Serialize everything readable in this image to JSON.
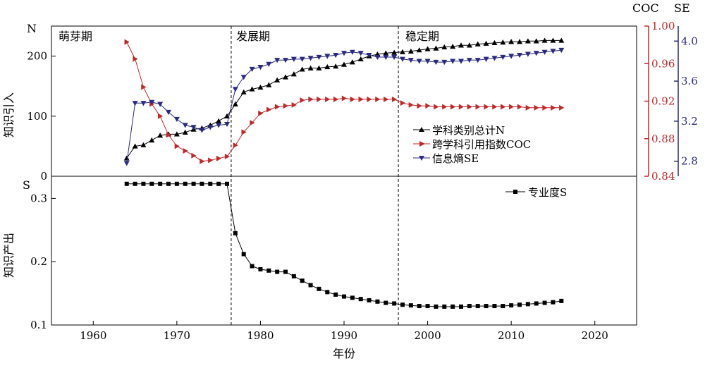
{
  "chart_data": [
    {
      "type": "line",
      "panel": "top",
      "ylabel": "知识引入",
      "y_axis_left": {
        "symbol": "N",
        "ylim": [
          0,
          250
        ],
        "ticks": [
          0,
          100,
          200
        ]
      },
      "y_axis_right_1": {
        "symbol": "COC",
        "ylim": [
          0.84,
          1.0
        ],
        "ticks": [
          0.84,
          0.88,
          0.92,
          0.96,
          1.0
        ],
        "tick_labels": [
          "0.84",
          "0.88",
          "0.92",
          "0.96",
          "1.00"
        ],
        "color": "#c0282a"
      },
      "y_axis_right_2": {
        "symbol": "SE",
        "ylim": [
          2.65,
          4.15
        ],
        "ticks": [
          2.8,
          3.2,
          3.6,
          4.0
        ],
        "tick_labels": [
          "2.8",
          "3.2",
          "3.6",
          "4.0"
        ],
        "color": "#2a2a80"
      },
      "phases": [
        {
          "label": "萌芽期"
        },
        {
          "label": "发展期"
        },
        {
          "label": "稳定期"
        }
      ],
      "phase_boundaries": [
        1976.5,
        1996.5
      ],
      "series": [
        {
          "name": "学科类别总计N",
          "axis": "left",
          "marker": "triangle-up",
          "color": "#000000",
          "x": [
            1964,
            1965,
            1966,
            1967,
            1968,
            1969,
            1970,
            1971,
            1972,
            1973,
            1974,
            1975,
            1976,
            1977,
            1978,
            1979,
            1980,
            1981,
            1982,
            1983,
            1984,
            1985,
            1986,
            1987,
            1988,
            1989,
            1990,
            1991,
            1992,
            1993,
            1994,
            1995,
            1996,
            1997,
            1998,
            1999,
            2000,
            2001,
            2002,
            2003,
            2004,
            2005,
            2006,
            2007,
            2008,
            2009,
            2010,
            2011,
            2012,
            2013,
            2014,
            2015,
            2016
          ],
          "values": [
            30,
            50,
            52,
            60,
            68,
            70,
            70,
            73,
            78,
            80,
            85,
            92,
            100,
            120,
            140,
            145,
            148,
            152,
            160,
            165,
            170,
            178,
            180,
            180,
            182,
            183,
            186,
            190,
            195,
            200,
            203,
            205,
            206,
            207,
            208,
            210,
            212,
            213,
            215,
            216,
            218,
            218,
            220,
            221,
            222,
            223,
            224,
            224,
            225,
            225,
            226,
            226,
            226
          ]
        },
        {
          "name": "跨学科引用指数COC",
          "axis": "right_1",
          "marker": "triangle-right",
          "color": "#c0282a",
          "x": [
            1964,
            1965,
            1966,
            1967,
            1968,
            1969,
            1970,
            1971,
            1972,
            1973,
            1974,
            1975,
            1976,
            1977,
            1978,
            1979,
            1980,
            1981,
            1982,
            1983,
            1984,
            1985,
            1986,
            1987,
            1988,
            1989,
            1990,
            1991,
            1992,
            1993,
            1994,
            1995,
            1996,
            1997,
            1998,
            1999,
            2000,
            2001,
            2002,
            2003,
            2004,
            2005,
            2006,
            2007,
            2008,
            2009,
            2010,
            2011,
            2012,
            2013,
            2014,
            2015,
            2016
          ],
          "values": [
            0.983,
            0.965,
            0.935,
            0.917,
            0.904,
            0.884,
            0.872,
            0.867,
            0.862,
            0.856,
            0.857,
            0.859,
            0.861,
            0.873,
            0.887,
            0.897,
            0.907,
            0.911,
            0.914,
            0.915,
            0.916,
            0.921,
            0.922,
            0.922,
            0.922,
            0.922,
            0.923,
            0.922,
            0.922,
            0.922,
            0.922,
            0.922,
            0.922,
            0.918,
            0.916,
            0.915,
            0.915,
            0.914,
            0.914,
            0.914,
            0.914,
            0.914,
            0.914,
            0.914,
            0.914,
            0.914,
            0.914,
            0.914,
            0.913,
            0.913,
            0.913,
            0.913,
            0.913
          ]
        },
        {
          "name": "信息熵SE",
          "axis": "right_2",
          "marker": "triangle-down",
          "color": "#2a2a80",
          "x": [
            1964,
            1965,
            1966,
            1967,
            1968,
            1969,
            1970,
            1971,
            1972,
            1973,
            1974,
            1975,
            1976,
            1977,
            1978,
            1979,
            1980,
            1981,
            1982,
            1983,
            1984,
            1985,
            1986,
            1987,
            1988,
            1989,
            1990,
            1991,
            1992,
            1993,
            1994,
            1995,
            1996,
            1997,
            1998,
            1999,
            2000,
            2001,
            2002,
            2003,
            2004,
            2005,
            2006,
            2007,
            2008,
            2009,
            2010,
            2011,
            2012,
            2013,
            2014,
            2015,
            2016
          ],
          "values": [
            2.78,
            3.38,
            3.38,
            3.39,
            3.37,
            3.29,
            3.22,
            3.16,
            3.14,
            3.11,
            3.14,
            3.16,
            3.17,
            3.52,
            3.64,
            3.72,
            3.74,
            3.77,
            3.81,
            3.81,
            3.82,
            3.82,
            3.83,
            3.84,
            3.85,
            3.86,
            3.88,
            3.89,
            3.88,
            3.86,
            3.84,
            3.84,
            3.84,
            3.82,
            3.81,
            3.8,
            3.8,
            3.79,
            3.79,
            3.8,
            3.8,
            3.81,
            3.81,
            3.82,
            3.83,
            3.84,
            3.85,
            3.86,
            3.87,
            3.88,
            3.89,
            3.9,
            3.91
          ]
        }
      ]
    },
    {
      "type": "line",
      "panel": "bottom",
      "ylabel": "知识产出",
      "xlabel": "年份",
      "y_axis_left": {
        "symbol": "S",
        "ylim": [
          0.1,
          0.335
        ],
        "ticks": [
          0.1,
          0.2,
          0.3
        ],
        "tick_labels": [
          "0.1",
          "0.2",
          "0.3"
        ]
      },
      "x_axis": {
        "xlim": [
          1955,
          2025
        ],
        "ticks": [
          1960,
          1970,
          1980,
          1990,
          2000,
          2010,
          2020
        ]
      },
      "series": [
        {
          "name": "专业度S",
          "marker": "square",
          "color": "#000000",
          "x": [
            1964,
            1965,
            1966,
            1967,
            1968,
            1969,
            1970,
            1971,
            1972,
            1973,
            1974,
            1975,
            1976,
            1977,
            1978,
            1979,
            1980,
            1981,
            1982,
            1983,
            1984,
            1985,
            1986,
            1987,
            1988,
            1989,
            1990,
            1991,
            1992,
            1993,
            1994,
            1995,
            1996,
            1997,
            1998,
            1999,
            2000,
            2001,
            2002,
            2003,
            2004,
            2005,
            2006,
            2007,
            2008,
            2009,
            2010,
            2011,
            2012,
            2013,
            2014,
            2015,
            2016
          ],
          "values": [
            0.323,
            0.323,
            0.323,
            0.323,
            0.323,
            0.323,
            0.323,
            0.323,
            0.323,
            0.323,
            0.323,
            0.323,
            0.323,
            0.245,
            0.212,
            0.193,
            0.188,
            0.186,
            0.184,
            0.184,
            0.177,
            0.17,
            0.163,
            0.157,
            0.152,
            0.148,
            0.145,
            0.143,
            0.141,
            0.139,
            0.137,
            0.135,
            0.134,
            0.132,
            0.131,
            0.13,
            0.13,
            0.129,
            0.129,
            0.129,
            0.129,
            0.13,
            0.13,
            0.13,
            0.13,
            0.13,
            0.131,
            0.132,
            0.133,
            0.134,
            0.135,
            0.136,
            0.138
          ]
        }
      ]
    }
  ]
}
